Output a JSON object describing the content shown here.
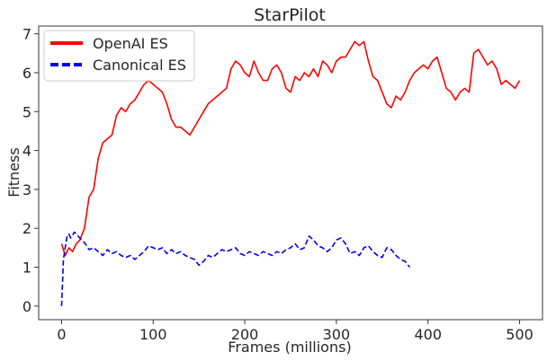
{
  "chart_data": {
    "type": "line",
    "title": "StarPilot",
    "xlabel": "Frames (millions)",
    "ylabel": "Fitness",
    "xlim": [
      -25,
      525
    ],
    "ylim": [
      -0.35,
      7.2
    ],
    "xticks": [
      0,
      100,
      200,
      300,
      400,
      500
    ],
    "yticks": [
      0,
      1,
      2,
      3,
      4,
      5,
      6,
      7
    ],
    "grid": false,
    "legend_position": "top-left",
    "series": [
      {
        "name": "OpenAI ES",
        "color": "#ff0000",
        "style": "solid",
        "x": [
          0,
          4,
          8,
          12,
          16,
          20,
          25,
          30,
          35,
          40,
          45,
          50,
          55,
          60,
          65,
          70,
          75,
          80,
          85,
          90,
          95,
          100,
          105,
          110,
          115,
          120,
          125,
          130,
          135,
          140,
          145,
          150,
          155,
          160,
          165,
          170,
          175,
          180,
          185,
          190,
          195,
          200,
          205,
          210,
          215,
          220,
          225,
          230,
          235,
          240,
          245,
          250,
          255,
          260,
          265,
          270,
          275,
          280,
          285,
          290,
          295,
          300,
          305,
          310,
          315,
          320,
          325,
          330,
          335,
          340,
          345,
          350,
          355,
          360,
          365,
          370,
          375,
          380,
          385,
          390,
          395,
          400,
          405,
          410,
          415,
          420,
          425,
          430,
          435,
          440,
          445,
          450,
          455,
          460,
          465,
          470,
          475,
          480,
          485,
          490,
          495,
          500
        ],
        "y": [
          1.6,
          1.3,
          1.5,
          1.4,
          1.6,
          1.7,
          2.0,
          2.8,
          3.0,
          3.8,
          4.2,
          4.3,
          4.4,
          4.9,
          5.1,
          5.0,
          5.2,
          5.3,
          5.5,
          5.7,
          5.8,
          5.7,
          5.6,
          5.5,
          5.2,
          4.8,
          4.6,
          4.6,
          4.5,
          4.4,
          4.6,
          4.8,
          5.0,
          5.2,
          5.3,
          5.4,
          5.5,
          5.6,
          6.1,
          6.3,
          6.2,
          6.0,
          5.9,
          6.3,
          6.0,
          5.8,
          5.8,
          6.1,
          6.2,
          6.0,
          5.6,
          5.5,
          5.9,
          5.8,
          6.0,
          5.9,
          6.1,
          5.9,
          6.3,
          6.2,
          6.0,
          6.3,
          6.4,
          6.4,
          6.6,
          6.8,
          6.7,
          6.8,
          6.3,
          5.9,
          5.8,
          5.5,
          5.2,
          5.1,
          5.4,
          5.3,
          5.5,
          5.8,
          6.0,
          6.1,
          6.2,
          6.1,
          6.3,
          6.4,
          6.0,
          5.6,
          5.5,
          5.3,
          5.5,
          5.6,
          5.5,
          6.5,
          6.6,
          6.4,
          6.2,
          6.3,
          6.1,
          5.7,
          5.8,
          5.7,
          5.6,
          5.8
        ]
      },
      {
        "name": "Canonical ES",
        "color": "#0000ee",
        "style": "dashed",
        "x": [
          0,
          2,
          4,
          6,
          8,
          10,
          14,
          18,
          22,
          26,
          30,
          35,
          40,
          45,
          50,
          55,
          60,
          65,
          70,
          75,
          80,
          85,
          90,
          95,
          100,
          105,
          110,
          115,
          120,
          125,
          130,
          135,
          140,
          145,
          150,
          155,
          160,
          165,
          170,
          175,
          180,
          185,
          190,
          195,
          200,
          205,
          210,
          215,
          220,
          225,
          230,
          235,
          240,
          245,
          250,
          255,
          260,
          265,
          270,
          275,
          280,
          285,
          290,
          295,
          300,
          305,
          310,
          315,
          320,
          325,
          330,
          335,
          340,
          345,
          350,
          355,
          360,
          365,
          370,
          375,
          380
        ],
        "y": [
          0.0,
          1.2,
          1.5,
          1.8,
          1.85,
          1.75,
          1.9,
          1.8,
          1.7,
          1.6,
          1.45,
          1.5,
          1.4,
          1.3,
          1.45,
          1.35,
          1.4,
          1.3,
          1.25,
          1.3,
          1.2,
          1.3,
          1.4,
          1.55,
          1.5,
          1.45,
          1.5,
          1.35,
          1.45,
          1.35,
          1.4,
          1.3,
          1.25,
          1.2,
          1.05,
          1.15,
          1.3,
          1.25,
          1.35,
          1.45,
          1.4,
          1.45,
          1.5,
          1.35,
          1.3,
          1.4,
          1.35,
          1.3,
          1.4,
          1.35,
          1.3,
          1.4,
          1.35,
          1.45,
          1.5,
          1.6,
          1.45,
          1.5,
          1.8,
          1.7,
          1.55,
          1.5,
          1.4,
          1.5,
          1.7,
          1.75,
          1.6,
          1.35,
          1.4,
          1.3,
          1.5,
          1.55,
          1.4,
          1.3,
          1.25,
          1.5,
          1.45,
          1.3,
          1.2,
          1.15,
          1.0
        ]
      }
    ]
  }
}
